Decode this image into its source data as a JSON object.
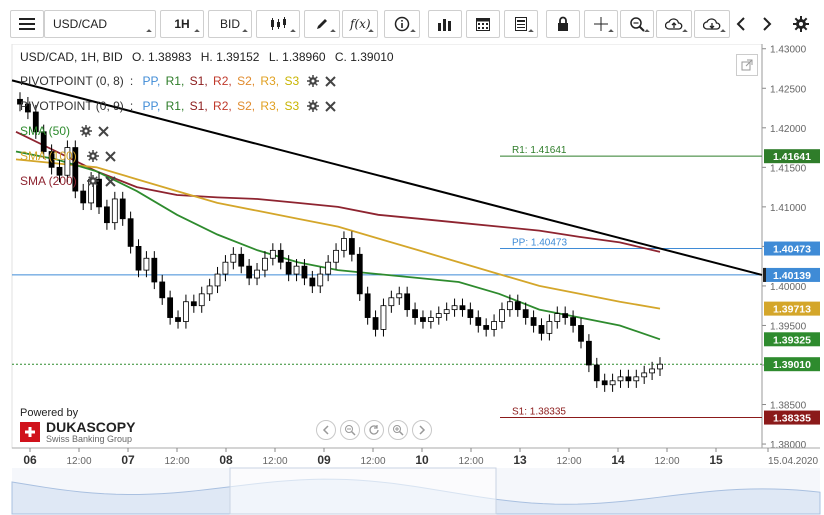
{
  "toolbar": {
    "symbol": "USD/CAD",
    "timeframe": "1H",
    "side": "BID"
  },
  "ohlc": {
    "label": "USD/CAD, 1H, BID",
    "o": "O. 1.38983",
    "h": "H. 1.39152",
    "l": "L. 1.38960",
    "c": "C. 1.39010"
  },
  "legend": {
    "pivot1": "PIVOTPOINT (0, 8)",
    "pivot2": "PIVOTPOINT (0, 9)",
    "pivot_keys": [
      ":",
      "PP,",
      "R1,",
      "S1,",
      "R2,",
      "S2,",
      "R3,",
      "S3"
    ],
    "sma50": "SMA (50)",
    "sma100": "SMA (100)",
    "sma200": "SMA (200)"
  },
  "brand": {
    "powered": "Powered by",
    "name": "DUKASCOPY",
    "sub": "Swiss Banking Group"
  },
  "colors": {
    "pp": "#3f8bd6",
    "r1": "#2f7d2a",
    "s1": "#8b1a1a",
    "r2": "#c0392b",
    "s2": "#e08a2c",
    "r3": "#e0a020",
    "s3": "#c8b400",
    "sma50": "#2e8b2e",
    "sma100": "#d4a62a",
    "sma200": "#8e2430",
    "up": "#ffffff",
    "down": "#000000"
  },
  "chart_data": {
    "type": "candlestick",
    "y_ticks": [
      "1.43000",
      "1.42500",
      "1.42000",
      "1.41500",
      "1.41000",
      "1.40500",
      "1.40000",
      "1.39500",
      "1.39000",
      "1.38500",
      "1.38000"
    ],
    "x_ticks": [
      "06",
      "12:00",
      "07",
      "12:00",
      "08",
      "12:00",
      "09",
      "12:00",
      "10",
      "12:00",
      "13",
      "12:00",
      "14",
      "12:00",
      "15",
      "15.04.2020"
    ],
    "ylim": [
      1.3795,
      1.4306
    ],
    "price_tags": [
      {
        "label": "1.41641",
        "value": 1.41641,
        "color": "#2f7d2a"
      },
      {
        "label": "1.40473",
        "value": 1.40473,
        "color": "#3f8bd6"
      },
      {
        "label": "1.40139",
        "value": 1.40139,
        "color": "#3f8bd6"
      },
      {
        "label": "1.39713",
        "value": 1.39713,
        "color": "#d4a62a"
      },
      {
        "label": "1.39325",
        "value": 1.39325,
        "color": "#2e8b2e"
      },
      {
        "label": "1.39010",
        "value": 1.3901,
        "color": "#2e8b2e"
      },
      {
        "label": "1.38335",
        "value": 1.38335,
        "color": "#8b1a1a"
      }
    ],
    "pivots": [
      {
        "name": "R1",
        "label": "R1: 1.41641",
        "value": 1.41641
      },
      {
        "name": "PP",
        "label": "PP: 1.40473",
        "value": 1.40473
      },
      {
        "name": "S1",
        "label": "S1: 1.38335",
        "value": 1.38335
      }
    ],
    "trendline": [
      [
        1.426,
        0
      ],
      [
        1.40139,
        1
      ]
    ],
    "sma50": [
      1.417,
      1.416,
      1.4145,
      1.412,
      1.409,
      1.4065,
      1.4045,
      1.403,
      1.402,
      1.4015,
      1.401,
      1.4005,
      1.399,
      1.397,
      1.396,
      1.395,
      1.39325
    ],
    "sma100": [
      1.416,
      1.4155,
      1.415,
      1.4135,
      1.412,
      1.4105,
      1.4095,
      1.4085,
      1.4075,
      1.406,
      1.4045,
      1.403,
      1.4015,
      1.4,
      1.399,
      1.398,
      1.39713
    ],
    "sma200": [
      1.4195,
      1.417,
      1.4145,
      1.4125,
      1.4115,
      1.4112,
      1.411,
      1.4105,
      1.41,
      1.409,
      1.4085,
      1.408,
      1.4075,
      1.407,
      1.4062,
      1.4055,
      1.4043
    ],
    "closes": [
      1.423,
      1.422,
      1.4195,
      1.417,
      1.415,
      1.414,
      1.4175,
      1.412,
      1.4105,
      1.4135,
      1.41,
      1.408,
      1.411,
      1.4085,
      1.405,
      1.402,
      1.4035,
      1.4005,
      1.3985,
      1.396,
      1.3955,
      1.398,
      1.3975,
      1.399,
      1.4,
      1.4015,
      1.403,
      1.404,
      1.4025,
      1.401,
      1.402,
      1.4035,
      1.4045,
      1.403,
      1.4015,
      1.4025,
      1.401,
      1.4,
      1.4015,
      1.403,
      1.4045,
      1.406,
      1.404,
      1.399,
      1.396,
      1.3945,
      1.3975,
      1.3985,
      1.399,
      1.397,
      1.396,
      1.3955,
      1.396,
      1.3965,
      1.397,
      1.3975,
      1.397,
      1.396,
      1.395,
      1.3945,
      1.3955,
      1.397,
      1.398,
      1.397,
      1.396,
      1.395,
      1.394,
      1.3955,
      1.3965,
      1.396,
      1.395,
      1.393,
      1.39,
      1.388,
      1.3875,
      1.388,
      1.3885,
      1.388,
      1.3885,
      1.389,
      1.3895,
      1.3901
    ]
  }
}
